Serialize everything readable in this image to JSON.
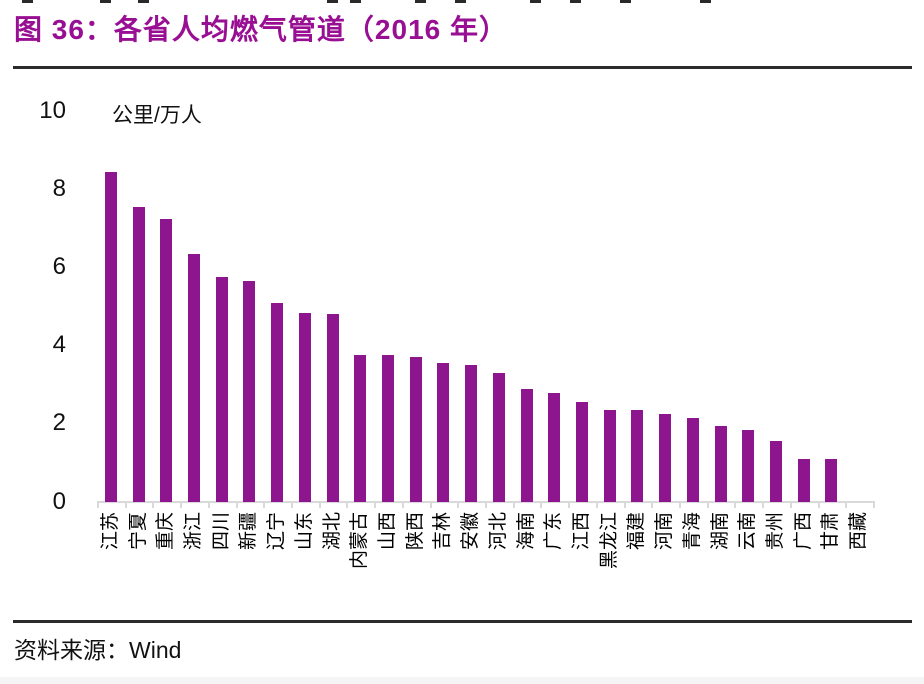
{
  "title": "图 36：各省人均燃气管道（2016 年）",
  "footer": {
    "source_label": "资料来源：",
    "source_value": "Wind"
  },
  "colors": {
    "bar": "#8d158d",
    "title": "#990f93",
    "axis": "#d9d9d9",
    "text": "#111111"
  },
  "chart_data": {
    "type": "bar",
    "title": "各省人均燃气管道（2016 年）",
    "unit_label": "公里/万人",
    "xlabel": "",
    "ylabel": "公里/万人",
    "ylim": [
      0,
      10
    ],
    "yticks": [
      0,
      2,
      4,
      6,
      8,
      10
    ],
    "grid": false,
    "legend": "none",
    "bar_color": "#8d158d",
    "categories": [
      "江苏",
      "宁夏",
      "重庆",
      "浙江",
      "四川",
      "新疆",
      "辽宁",
      "山东",
      "湖北",
      "内蒙古",
      "山西",
      "陕西",
      "吉林",
      "安徽",
      "河北",
      "海南",
      "广东",
      "江西",
      "黑龙江",
      "福建",
      "河南",
      "青海",
      "湖南",
      "云南",
      "贵州",
      "广西",
      "甘肃",
      "西藏"
    ],
    "values": [
      8.45,
      7.55,
      7.25,
      6.35,
      5.75,
      5.65,
      5.1,
      4.85,
      4.8,
      3.75,
      3.75,
      3.7,
      3.55,
      3.5,
      3.3,
      2.9,
      2.8,
      2.55,
      2.35,
      2.35,
      2.25,
      2.15,
      1.95,
      1.85,
      1.55,
      1.1,
      1.1,
      0
    ]
  }
}
